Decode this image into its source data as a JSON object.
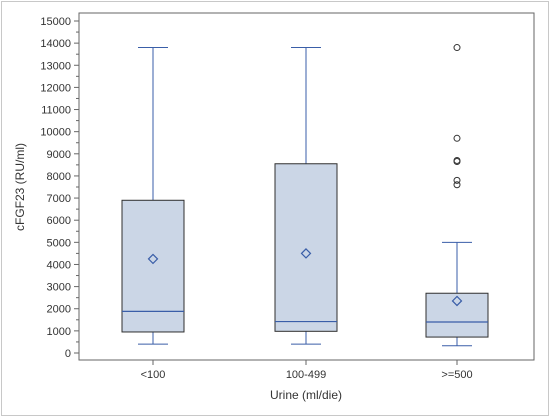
{
  "chart_data": {
    "type": "box",
    "title": "",
    "xlabel": "Urine (ml/die)",
    "ylabel": "cFGF23 (RU/ml)",
    "ylim": [
      0,
      15000
    ],
    "yticks": [
      0,
      1000,
      2000,
      3000,
      4000,
      5000,
      6000,
      7000,
      8000,
      9000,
      10000,
      11000,
      12000,
      13000,
      14000,
      15000
    ],
    "ytick_labels": [
      "0",
      "1000",
      "2000",
      "3000",
      "4000",
      "5000",
      "6000",
      "7000",
      "8000",
      "9000",
      "10000",
      "11000",
      "12000",
      "13000",
      "14000",
      "15000"
    ],
    "categories": [
      "<100",
      "100-499",
      ">=500"
    ],
    "boxes": [
      {
        "category": "<100",
        "whisker_low": 400,
        "q1": 950,
        "median": 1880,
        "q3": 6900,
        "whisker_high": 13800,
        "mean": 4250,
        "outliers": []
      },
      {
        "category": "100-499",
        "whisker_low": 400,
        "q1": 980,
        "median": 1420,
        "q3": 8550,
        "whisker_high": 13800,
        "mean": 4500,
        "outliers": []
      },
      {
        "category": ">=500",
        "whisker_low": 330,
        "q1": 720,
        "median": 1400,
        "q3": 2700,
        "whisker_high": 5000,
        "mean": 2350,
        "outliers": [
          7600,
          7800,
          8650,
          8700,
          9700,
          13800
        ]
      }
    ],
    "grid": false,
    "legend": "none",
    "colors": {
      "box_fill": "#cbd6e6",
      "box_stroke": "#2f2f2f",
      "whisker": "#3a5ea8",
      "median": "#3a5ea8",
      "mean": "#3a5ea8",
      "outlier": "#333333",
      "axis": "#666666"
    }
  }
}
